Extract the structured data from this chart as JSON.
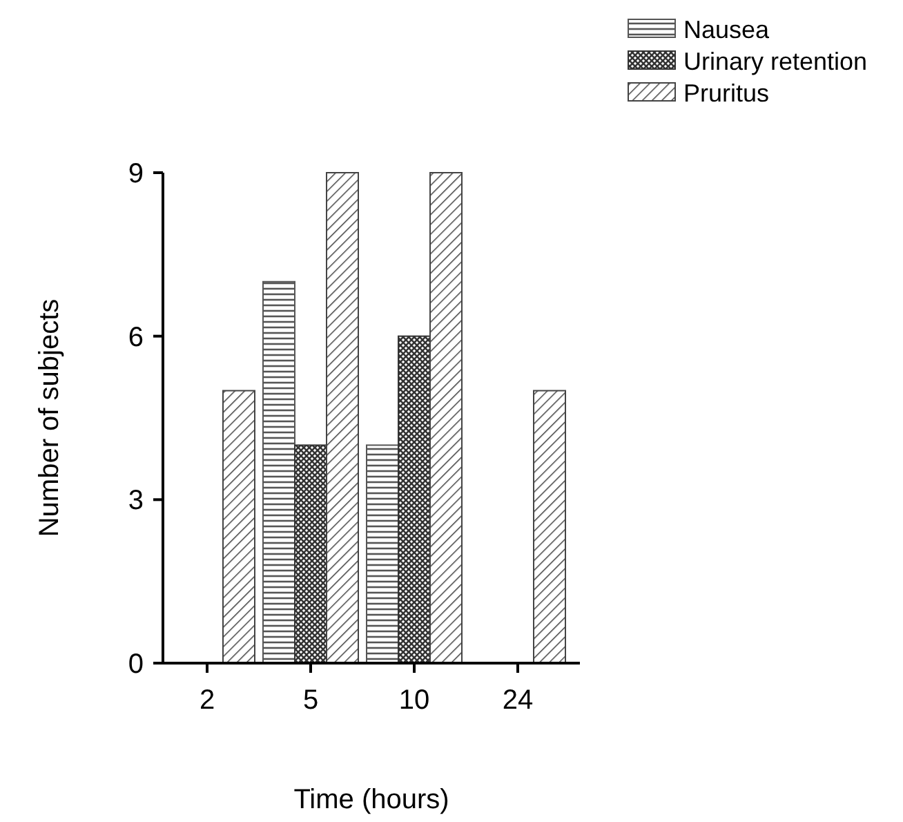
{
  "chart_data": {
    "type": "bar",
    "xlabel": "Time (hours)",
    "ylabel": "Number of subjects",
    "categories": [
      "2",
      "5",
      "10",
      "24"
    ],
    "series": [
      {
        "name": "Nausea",
        "color": "#555555",
        "values": [
          0,
          7,
          4,
          0
        ]
      },
      {
        "name": "Urinary retention",
        "color": "#333333",
        "values": [
          0,
          4,
          6,
          0
        ]
      },
      {
        "name": "Pruritus",
        "color": "#444444",
        "values": [
          5,
          9,
          9,
          5
        ]
      }
    ],
    "ylim": [
      0,
      9
    ],
    "yticks": [
      0,
      3,
      6,
      9
    ],
    "legend": "top right",
    "grid": false
  }
}
